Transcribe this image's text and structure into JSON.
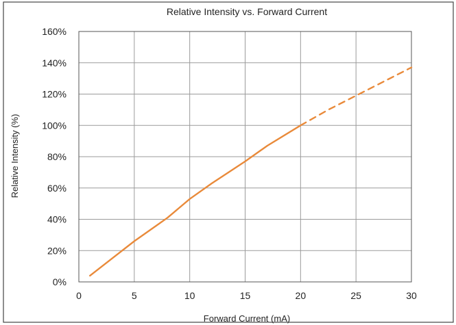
{
  "chart_data": {
    "type": "line",
    "title": "Relative Intensity vs. Forward Current",
    "xlabel": "Forward Current (mA)",
    "ylabel": "Relative Intensity (%)",
    "xlim": [
      0,
      30
    ],
    "ylim": [
      0,
      160
    ],
    "x_ticks": [
      "0",
      "5",
      "10",
      "15",
      "20",
      "25",
      "30"
    ],
    "y_ticks": [
      "0%",
      "20%",
      "40%",
      "60%",
      "80%",
      "100%",
      "120%",
      "140%",
      "160%"
    ],
    "grid": true,
    "series": [
      {
        "style": "solid",
        "color": "#e98a3a",
        "x": [
          1,
          3,
          5,
          7,
          8,
          9,
          10,
          12,
          15,
          17,
          20
        ],
        "y": [
          4,
          15,
          26,
          36,
          41,
          47,
          53,
          63,
          77,
          87,
          100
        ]
      },
      {
        "style": "dashed",
        "color": "#e98a3a",
        "x": [
          20,
          22.5,
          25,
          27.5,
          30
        ],
        "y": [
          100,
          110,
          119,
          128,
          137
        ]
      }
    ]
  }
}
